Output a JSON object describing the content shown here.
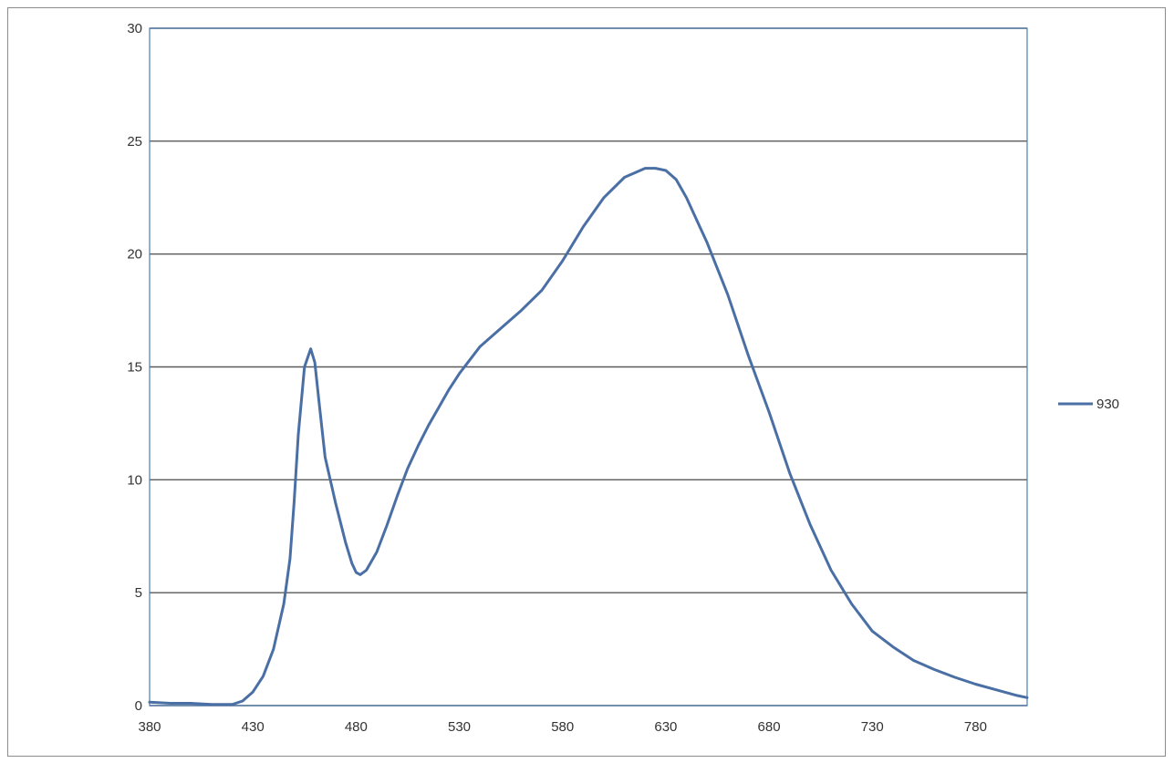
{
  "chart_data": {
    "type": "line",
    "title": "",
    "xlabel": "",
    "ylabel": "",
    "xlim": [
      380,
      805
    ],
    "ylim": [
      0,
      30
    ],
    "x_ticks": [
      "380",
      "430",
      "480",
      "530",
      "580",
      "630",
      "680",
      "730",
      "780"
    ],
    "y_ticks": [
      "0",
      "5",
      "10",
      "15",
      "20",
      "25",
      "30"
    ],
    "grid": "horizontal",
    "legend_position": "right",
    "line_color": "#4a6fa5",
    "series": [
      {
        "name": "930",
        "x": [
          380,
          390,
          400,
          410,
          420,
          425,
          430,
          435,
          440,
          445,
          448,
          450,
          452,
          455,
          458,
          460,
          462,
          465,
          468,
          470,
          475,
          478,
          480,
          482,
          485,
          490,
          495,
          500,
          505,
          510,
          515,
          520,
          525,
          530,
          540,
          550,
          560,
          570,
          580,
          590,
          600,
          610,
          620,
          625,
          630,
          635,
          640,
          650,
          660,
          670,
          680,
          690,
          700,
          710,
          720,
          730,
          740,
          750,
          760,
          770,
          780,
          790,
          800,
          805
        ],
        "y": [
          0.15,
          0.1,
          0.1,
          0.05,
          0.05,
          0.2,
          0.6,
          1.3,
          2.5,
          4.5,
          6.5,
          9.0,
          12.0,
          15.0,
          15.8,
          15.2,
          13.5,
          11.0,
          9.8,
          9.0,
          7.2,
          6.3,
          5.9,
          5.8,
          6.0,
          6.8,
          8.0,
          9.3,
          10.5,
          11.5,
          12.4,
          13.2,
          14.0,
          14.7,
          15.9,
          16.7,
          17.5,
          18.4,
          19.7,
          21.2,
          22.5,
          23.4,
          23.8,
          23.8,
          23.7,
          23.3,
          22.5,
          20.5,
          18.2,
          15.5,
          13.0,
          10.3,
          8.0,
          6.0,
          4.5,
          3.3,
          2.6,
          2.0,
          1.6,
          1.25,
          0.95,
          0.7,
          0.45,
          0.35
        ]
      }
    ]
  }
}
